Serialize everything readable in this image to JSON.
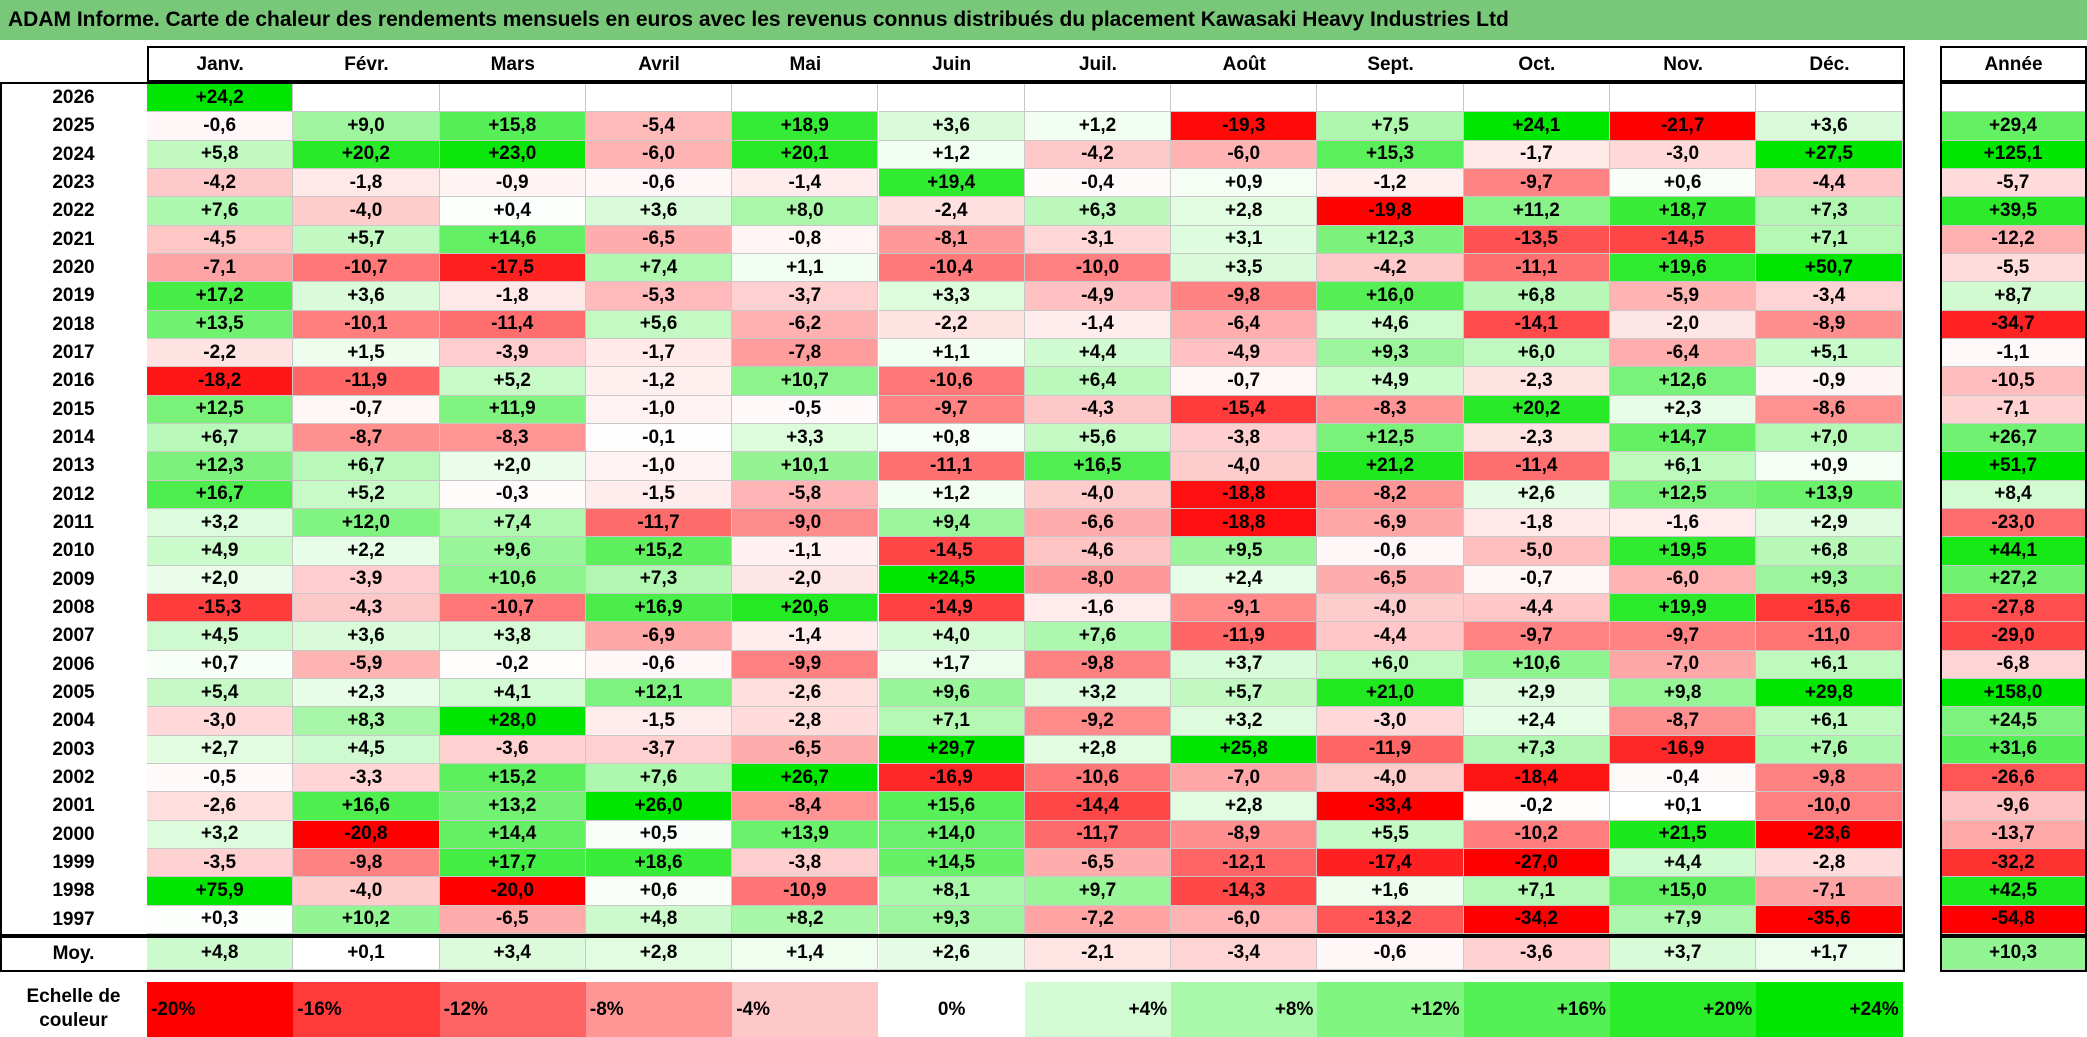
{
  "title": "ADAM Informe. Carte de chaleur des rendements mensuels en euros avec les revenus connus distribués du placement Kawasaki Heavy Industries Ltd",
  "chart_data": {
    "type": "heatmap",
    "months": [
      "Janv.",
      "Févr.",
      "Mars",
      "Avril",
      "Mai",
      "Juin",
      "Juil.",
      "Août",
      "Sept.",
      "Oct.",
      "Nov.",
      "Déc."
    ],
    "year_header": "Année",
    "rows": [
      {
        "year": "2026",
        "months": [
          "+24,2",
          "",
          "",
          "",
          "",
          "",
          "",
          "",
          "",
          "",
          "",
          ""
        ],
        "annual": ""
      },
      {
        "year": "2025",
        "months": [
          "-0,6",
          "+9,0",
          "+15,8",
          "-5,4",
          "+18,9",
          "+3,6",
          "+1,2",
          "-19,3",
          "+7,5",
          "+24,1",
          "-21,7",
          "+3,6"
        ],
        "annual": "+29,4"
      },
      {
        "year": "2024",
        "months": [
          "+5,8",
          "+20,2",
          "+23,0",
          "-6,0",
          "+20,1",
          "+1,2",
          "-4,2",
          "-6,0",
          "+15,3",
          "-1,7",
          "-3,0",
          "+27,5"
        ],
        "annual": "+125,1"
      },
      {
        "year": "2023",
        "months": [
          "-4,2",
          "-1,8",
          "-0,9",
          "-0,6",
          "-1,4",
          "+19,4",
          "-0,4",
          "+0,9",
          "-1,2",
          "-9,7",
          "+0,6",
          "-4,4"
        ],
        "annual": "-5,7"
      },
      {
        "year": "2022",
        "months": [
          "+7,6",
          "-4,0",
          "+0,4",
          "+3,6",
          "+8,0",
          "-2,4",
          "+6,3",
          "+2,8",
          "-19,8",
          "+11,2",
          "+18,7",
          "+7,3"
        ],
        "annual": "+39,5"
      },
      {
        "year": "2021",
        "months": [
          "-4,5",
          "+5,7",
          "+14,6",
          "-6,5",
          "-0,8",
          "-8,1",
          "-3,1",
          "+3,1",
          "+12,3",
          "-13,5",
          "-14,5",
          "+7,1"
        ],
        "annual": "-12,2"
      },
      {
        "year": "2020",
        "months": [
          "-7,1",
          "-10,7",
          "-17,5",
          "+7,4",
          "+1,1",
          "-10,4",
          "-10,0",
          "+3,5",
          "-4,2",
          "-11,1",
          "+19,6",
          "+50,7"
        ],
        "annual": "-5,5"
      },
      {
        "year": "2019",
        "months": [
          "+17,2",
          "+3,6",
          "-1,8",
          "-5,3",
          "-3,7",
          "+3,3",
          "-4,9",
          "-9,8",
          "+16,0",
          "+6,8",
          "-5,9",
          "-3,4"
        ],
        "annual": "+8,7"
      },
      {
        "year": "2018",
        "months": [
          "+13,5",
          "-10,1",
          "-11,4",
          "+5,6",
          "-6,2",
          "-2,2",
          "-1,4",
          "-6,4",
          "+4,6",
          "-14,1",
          "-2,0",
          "-8,9"
        ],
        "annual": "-34,7"
      },
      {
        "year": "2017",
        "months": [
          "-2,2",
          "+1,5",
          "-3,9",
          "-1,7",
          "-7,8",
          "+1,1",
          "+4,4",
          "-4,9",
          "+9,3",
          "+6,0",
          "-6,4",
          "+5,1"
        ],
        "annual": "-1,1"
      },
      {
        "year": "2016",
        "months": [
          "-18,2",
          "-11,9",
          "+5,2",
          "-1,2",
          "+10,7",
          "-10,6",
          "+6,4",
          "-0,7",
          "+4,9",
          "-2,3",
          "+12,6",
          "-0,9"
        ],
        "annual": "-10,5"
      },
      {
        "year": "2015",
        "months": [
          "+12,5",
          "-0,7",
          "+11,9",
          "-1,0",
          "-0,5",
          "-9,7",
          "-4,3",
          "-15,4",
          "-8,3",
          "+20,2",
          "+2,3",
          "-8,6"
        ],
        "annual": "-7,1"
      },
      {
        "year": "2014",
        "months": [
          "+6,7",
          "-8,7",
          "-8,3",
          "-0,1",
          "+3,3",
          "+0,8",
          "+5,6",
          "-3,8",
          "+12,5",
          "-2,3",
          "+14,7",
          "+7,0"
        ],
        "annual": "+26,7"
      },
      {
        "year": "2013",
        "months": [
          "+12,3",
          "+6,7",
          "+2,0",
          "-1,0",
          "+10,1",
          "-11,1",
          "+16,5",
          "-4,0",
          "+21,2",
          "-11,4",
          "+6,1",
          "+0,9"
        ],
        "annual": "+51,7"
      },
      {
        "year": "2012",
        "months": [
          "+16,7",
          "+5,2",
          "-0,3",
          "-1,5",
          "-5,8",
          "+1,2",
          "-4,0",
          "-18,8",
          "-8,2",
          "+2,6",
          "+12,5",
          "+13,9"
        ],
        "annual": "+8,4"
      },
      {
        "year": "2011",
        "months": [
          "+3,2",
          "+12,0",
          "+7,4",
          "-11,7",
          "-9,0",
          "+9,4",
          "-6,6",
          "-18,8",
          "-6,9",
          "-1,8",
          "-1,6",
          "+2,9"
        ],
        "annual": "-23,0"
      },
      {
        "year": "2010",
        "months": [
          "+4,9",
          "+2,2",
          "+9,6",
          "+15,2",
          "-1,1",
          "-14,5",
          "-4,6",
          "+9,5",
          "-0,6",
          "-5,0",
          "+19,5",
          "+6,8"
        ],
        "annual": "+44,1"
      },
      {
        "year": "2009",
        "months": [
          "+2,0",
          "-3,9",
          "+10,6",
          "+7,3",
          "-2,0",
          "+24,5",
          "-8,0",
          "+2,4",
          "-6,5",
          "-0,7",
          "-6,0",
          "+9,3"
        ],
        "annual": "+27,2"
      },
      {
        "year": "2008",
        "months": [
          "-15,3",
          "-4,3",
          "-10,7",
          "+16,9",
          "+20,6",
          "-14,9",
          "-1,6",
          "-9,1",
          "-4,0",
          "-4,4",
          "+19,9",
          "-15,6"
        ],
        "annual": "-27,8"
      },
      {
        "year": "2007",
        "months": [
          "+4,5",
          "+3,6",
          "+3,8",
          "-6,9",
          "-1,4",
          "+4,0",
          "+7,6",
          "-11,9",
          "-4,4",
          "-9,7",
          "-9,7",
          "-11,0"
        ],
        "annual": "-29,0"
      },
      {
        "year": "2006",
        "months": [
          "+0,7",
          "-5,9",
          "-0,2",
          "-0,6",
          "-9,9",
          "+1,7",
          "-9,8",
          "+3,7",
          "+6,0",
          "+10,6",
          "-7,0",
          "+6,1"
        ],
        "annual": "-6,8"
      },
      {
        "year": "2005",
        "months": [
          "+5,4",
          "+2,3",
          "+4,1",
          "+12,1",
          "-2,6",
          "+9,6",
          "+3,2",
          "+5,7",
          "+21,0",
          "+2,9",
          "+9,8",
          "+29,8"
        ],
        "annual": "+158,0"
      },
      {
        "year": "2004",
        "months": [
          "-3,0",
          "+8,3",
          "+28,0",
          "-1,5",
          "-2,8",
          "+7,1",
          "-9,2",
          "+3,2",
          "-3,0",
          "+2,4",
          "-8,7",
          "+6,1"
        ],
        "annual": "+24,5"
      },
      {
        "year": "2003",
        "months": [
          "+2,7",
          "+4,5",
          "-3,6",
          "-3,7",
          "-6,5",
          "+29,7",
          "+2,8",
          "+25,8",
          "-11,9",
          "+7,3",
          "-16,9",
          "+7,6"
        ],
        "annual": "+31,6"
      },
      {
        "year": "2002",
        "months": [
          "-0,5",
          "-3,3",
          "+15,2",
          "+7,6",
          "+26,7",
          "-16,9",
          "-10,6",
          "-7,0",
          "-4,0",
          "-18,4",
          "-0,4",
          "-9,8"
        ],
        "annual": "-26,6"
      },
      {
        "year": "2001",
        "months": [
          "-2,6",
          "+16,6",
          "+13,2",
          "+26,0",
          "-8,4",
          "+15,6",
          "-14,4",
          "+2,8",
          "-33,4",
          "-0,2",
          "+0,1",
          "-10,0"
        ],
        "annual": "-9,6"
      },
      {
        "year": "2000",
        "months": [
          "+3,2",
          "-20,8",
          "+14,4",
          "+0,5",
          "+13,9",
          "+14,0",
          "-11,7",
          "-8,9",
          "+5,5",
          "-10,2",
          "+21,5",
          "-23,6"
        ],
        "annual": "-13,7"
      },
      {
        "year": "1999",
        "months": [
          "-3,5",
          "-9,8",
          "+17,7",
          "+18,6",
          "-3,8",
          "+14,5",
          "-6,5",
          "-12,1",
          "-17,4",
          "-27,0",
          "+4,4",
          "-2,8"
        ],
        "annual": "-32,2"
      },
      {
        "year": "1998",
        "months": [
          "+75,9",
          "-4,0",
          "-20,0",
          "+0,6",
          "-10,9",
          "+8,1",
          "+9,7",
          "-14,3",
          "+1,6",
          "+7,1",
          "+15,0",
          "-7,1"
        ],
        "annual": "+42,5"
      },
      {
        "year": "1997",
        "months": [
          "+0,3",
          "+10,2",
          "-6,5",
          "+4,8",
          "+8,2",
          "+9,3",
          "-7,2",
          "-6,0",
          "-13,2",
          "-34,2",
          "+7,9",
          "-35,6"
        ],
        "annual": "-54,8"
      }
    ],
    "average": {
      "label": "Moy.",
      "months": [
        "+4,8",
        "+0,1",
        "+3,4",
        "+2,8",
        "+1,4",
        "+2,6",
        "-2,1",
        "-3,4",
        "-0,6",
        "-3,6",
        "+3,7",
        "+1,7"
      ],
      "annual": "+10,3"
    },
    "scale": {
      "label_line1": "Echelle de",
      "label_line2": "couleur",
      "steps": [
        {
          "label": "-20%",
          "color": "#ff0000"
        },
        {
          "label": "-16%",
          "color": "#ff3a3a"
        },
        {
          "label": "-12%",
          "color": "#ff6464"
        },
        {
          "label": "-8%",
          "color": "#ff9696"
        },
        {
          "label": "-4%",
          "color": "#ffc8c8"
        },
        {
          "label": "0%",
          "color": "#ffffff"
        },
        {
          "label": "+4%",
          "color": "#d4fcd4"
        },
        {
          "label": "+8%",
          "color": "#aaf9aa"
        },
        {
          "label": "+12%",
          "color": "#80f580"
        },
        {
          "label": "+16%",
          "color": "#55f055"
        },
        {
          "label": "+20%",
          "color": "#2beb2b"
        },
        {
          "label": "+24%",
          "color": "#00e600"
        }
      ]
    }
  }
}
